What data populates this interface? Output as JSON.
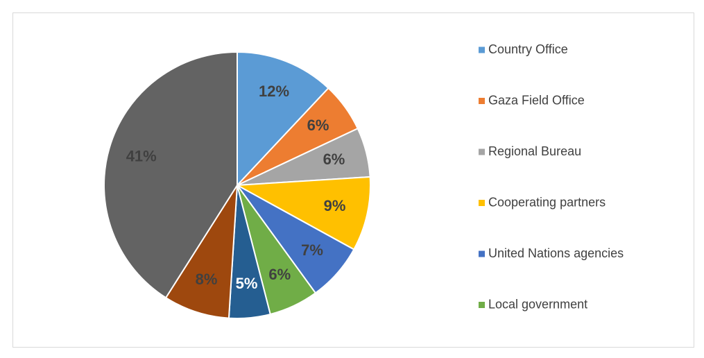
{
  "chart_data": {
    "type": "pie",
    "categories": [
      "Country Office",
      "Gaza Field Office",
      "Regional Bureau",
      "Cooperating partners",
      "United Nations agencies",
      "Local government",
      null,
      null,
      null
    ],
    "values": [
      12,
      6,
      6,
      9,
      7,
      6,
      5,
      8,
      41
    ],
    "value_labels": [
      "12%",
      "6%",
      "6%",
      "9%",
      "7%",
      "6%",
      "5%",
      "8%",
      "41%"
    ],
    "colors": [
      "#5b9bd5",
      "#ed7d31",
      "#a5a5a5",
      "#ffc000",
      "#4472c4",
      "#70ad47",
      "#255e91",
      "#9e480e",
      "#636363"
    ],
    "label_colors": [
      "#404040",
      "#404040",
      "#404040",
      "#404040",
      "#404040",
      "#404040",
      "#ffffff",
      "#404040",
      "#404040"
    ],
    "legend": "right"
  }
}
